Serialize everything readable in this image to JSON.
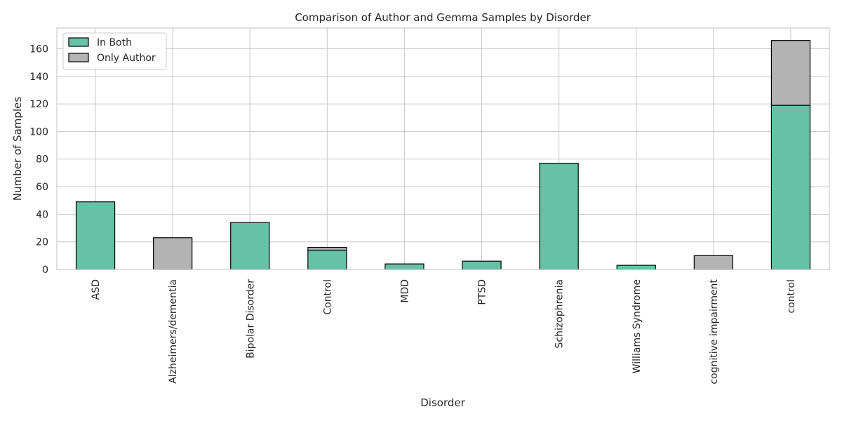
{
  "chart_data": {
    "type": "bar",
    "stacked": true,
    "title": "Comparison of Author and Gemma Samples by Disorder",
    "xlabel": "Disorder",
    "ylabel": "Number of Samples",
    "categories": [
      "ASD",
      "Alzheimers/dementia",
      "Bipolar Disorder",
      "Control",
      "MDD",
      "PTSD",
      "Schizophrenia",
      "Williams Syndrome",
      "cognitive impairment",
      "control"
    ],
    "series": [
      {
        "name": "In Both",
        "color": "#66c2a5",
        "values": [
          49,
          0,
          34,
          14,
          4,
          6,
          77,
          3,
          0,
          119
        ]
      },
      {
        "name": "Only Author",
        "color": "#b3b3b3",
        "values": [
          0,
          23,
          0,
          2,
          0,
          0,
          0,
          0,
          10,
          47
        ]
      }
    ],
    "ylim": [
      0,
      175
    ],
    "yticks": [
      0,
      20,
      40,
      60,
      80,
      100,
      120,
      140,
      160
    ],
    "grid": true,
    "legend_position": "top-left"
  }
}
